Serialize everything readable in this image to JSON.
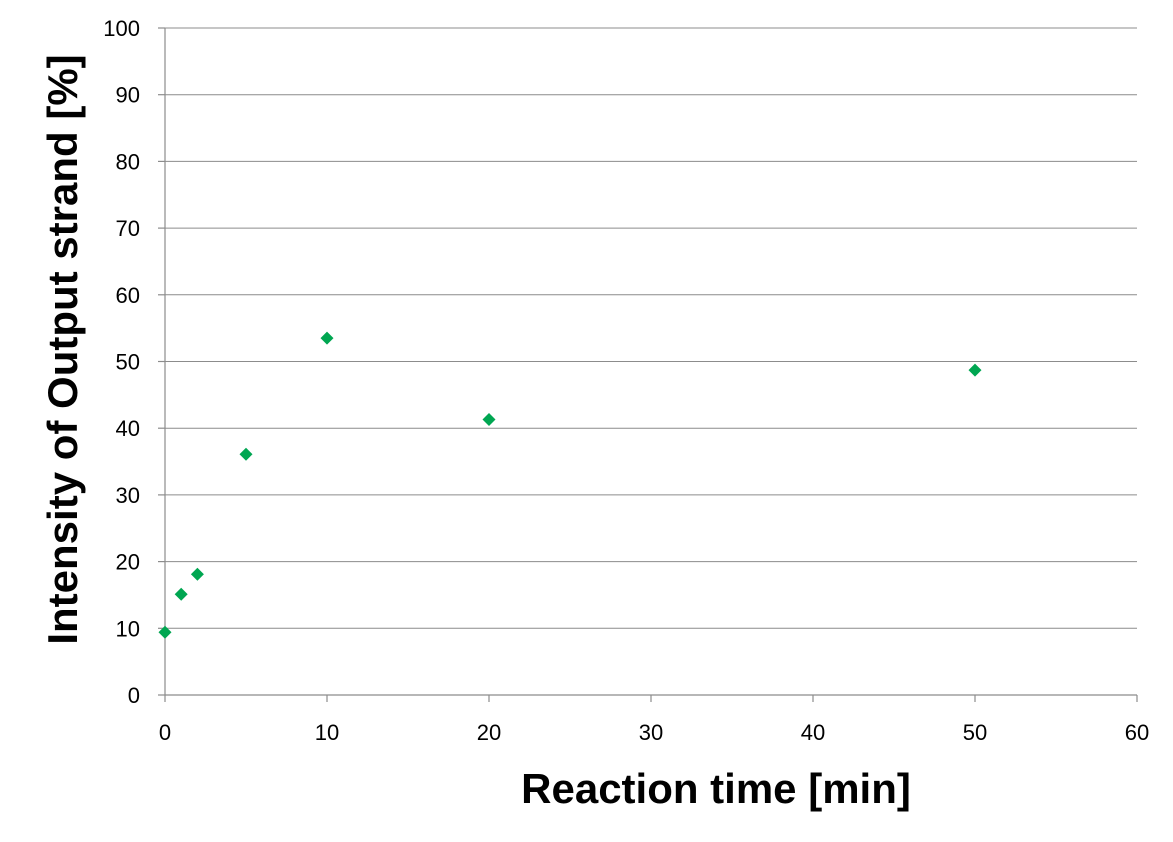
{
  "chart_data": {
    "type": "scatter",
    "title": "",
    "xlabel": "Reaction time [min]",
    "ylabel": "Intensity of Output strand [%]",
    "xlim": [
      0,
      60
    ],
    "ylim": [
      0,
      100
    ],
    "xticks": [
      0,
      10,
      20,
      30,
      40,
      50,
      60
    ],
    "yticks": [
      0,
      10,
      20,
      30,
      40,
      50,
      60,
      70,
      80,
      90,
      100
    ],
    "grid": "horizontal",
    "legend": "none",
    "marker": "diamond",
    "marker_color": "#00a651",
    "series": [
      {
        "x": [
          0,
          1,
          2,
          5,
          10,
          20,
          50
        ],
        "y": [
          9.4,
          15.1,
          18.1,
          36.1,
          53.5,
          41.3,
          48.7
        ]
      }
    ]
  }
}
